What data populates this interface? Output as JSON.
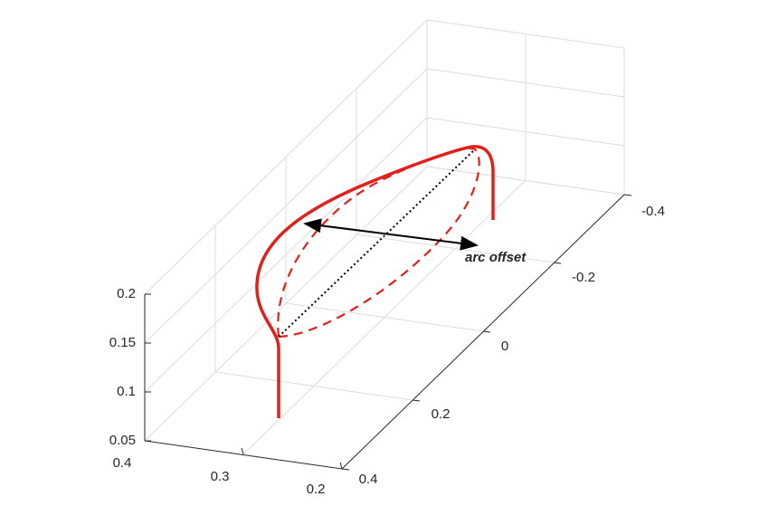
{
  "axes": {
    "z_ticks": [
      "0.2",
      "0.15",
      "0.1",
      "0.05"
    ],
    "x_ticks": [
      "0.4",
      "0.3",
      "0.2"
    ],
    "y_ticks": [
      "0.4",
      "0.2",
      "0",
      "-0.2",
      "-0.4"
    ]
  },
  "annotation": "arc offset"
}
